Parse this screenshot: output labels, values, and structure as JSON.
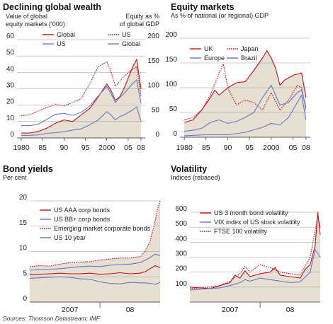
{
  "source": "Sources: Thomson Datastream; IMF",
  "colors": {
    "red": "#c0141c",
    "blue": "#6677cc",
    "fill": "#e6dfd2",
    "grid": "#999999",
    "title": "#111111"
  },
  "chart_data": [
    {
      "id": "wealth",
      "type": "line",
      "title": "Declining global wealth",
      "ylabel_left": "Value of global equity markets ('000)",
      "ylabel_right": "Equity as % of global GDP",
      "ylim_left": [
        0,
        60
      ],
      "ylim_right": [
        0,
        200
      ],
      "yticks_left": [
        0,
        10,
        20,
        30,
        40,
        50,
        60
      ],
      "yticks_right": [
        0,
        50,
        100,
        150,
        200
      ],
      "xlim": [
        1979,
        2009
      ],
      "xticks": [
        1980,
        1985,
        1990,
        1995,
        2000,
        2005,
        2008
      ],
      "xtick_labels": [
        "1980",
        "85",
        "90",
        "95",
        "2000",
        "05",
        "08"
      ],
      "legend": [
        {
          "label": "Global",
          "style": "solid",
          "color": "red",
          "group": "left"
        },
        {
          "label": "US",
          "style": "solid",
          "color": "blue",
          "group": "left"
        },
        {
          "label": "US",
          "style": "dotted",
          "color": "red",
          "group": "right"
        },
        {
          "label": "Global",
          "style": "solid",
          "color": "blue",
          "group": "right"
        }
      ],
      "series": [
        {
          "name": "Global",
          "axis": "left",
          "style": "solid",
          "color": "red",
          "fill": true,
          "x": [
            1980,
            1982,
            1984,
            1986,
            1988,
            1990,
            1992,
            1994,
            1996,
            1998,
            2000,
            2001,
            2002,
            2003,
            2004,
            2006,
            2007,
            2008
          ],
          "y": [
            3,
            3,
            4,
            6,
            9,
            11,
            10,
            14,
            18,
            25,
            33,
            29,
            23,
            25,
            30,
            43,
            48,
            30
          ]
        },
        {
          "name": "US",
          "axis": "left",
          "style": "solid",
          "color": "blue",
          "x": [
            1980,
            1982,
            1984,
            1986,
            1988,
            1990,
            1992,
            1994,
            1996,
            1998,
            2000,
            2001,
            2002,
            2003,
            2004,
            2006,
            2007,
            2008
          ],
          "y": [
            1.5,
            1.6,
            1.9,
            2.8,
            3.2,
            3.8,
            4.8,
            5.5,
            8,
            11,
            16,
            14,
            11,
            13,
            14,
            17,
            19,
            10
          ]
        },
        {
          "name": "US",
          "axis": "right",
          "style": "dotted",
          "color": "red",
          "x": [
            1980,
            1982,
            1984,
            1986,
            1988,
            1990,
            1992,
            1994,
            1996,
            1998,
            2000,
            2001,
            2002,
            2003,
            2004,
            2006,
            2007,
            2008
          ],
          "y": [
            45,
            47,
            55,
            62,
            68,
            65,
            72,
            80,
            110,
            145,
            155,
            135,
            105,
            115,
            125,
            140,
            145,
            85
          ]
        },
        {
          "name": "Global",
          "axis": "right",
          "style": "solid",
          "color": "blue",
          "x": [
            1980,
            1982,
            1984,
            1986,
            1988,
            1990,
            1992,
            1994,
            1996,
            1998,
            2000,
            2001,
            2002,
            2003,
            2004,
            2006,
            2007,
            2008
          ],
          "y": [
            25,
            25,
            28,
            38,
            48,
            50,
            46,
            52,
            65,
            85,
            105,
            90,
            72,
            82,
            90,
            110,
            118,
            70
          ]
        }
      ]
    },
    {
      "id": "equity",
      "type": "line",
      "title": "Equity markets",
      "subtitle": "As % of national (or regional) GDP",
      "ylim": [
        0,
        200
      ],
      "yticks": [
        0,
        50,
        100,
        150,
        200
      ],
      "xlim": [
        1979,
        2009
      ],
      "xticks": [
        1980,
        1985,
        1990,
        1995,
        2000,
        2005,
        2008
      ],
      "xtick_labels": [
        "1980",
        "85",
        "90",
        "95",
        "2000",
        "05",
        "08"
      ],
      "legend": [
        {
          "label": "UK",
          "style": "solid",
          "color": "red"
        },
        {
          "label": "Japan",
          "style": "dotted",
          "color": "red"
        },
        {
          "label": "Europe",
          "style": "solid",
          "color": "blue"
        },
        {
          "label": "Brazil",
          "style": "solid",
          "color": "blue"
        }
      ],
      "series": [
        {
          "name": "UK",
          "style": "solid",
          "color": "red",
          "fill": true,
          "x": [
            1980,
            1982,
            1984,
            1986,
            1987,
            1988,
            1990,
            1992,
            1994,
            1996,
            1998,
            1999,
            2000,
            2001,
            2002,
            2003,
            2005,
            2007,
            2008
          ],
          "y": [
            30,
            35,
            55,
            80,
            95,
            85,
            100,
            110,
            112,
            135,
            160,
            175,
            160,
            140,
            105,
            115,
            125,
            130,
            80
          ]
        },
        {
          "name": "Japan",
          "style": "dotted",
          "color": "red",
          "x": [
            1980,
            1982,
            1984,
            1986,
            1988,
            1989,
            1990,
            1992,
            1994,
            1996,
            1998,
            2000,
            2002,
            2004,
            2006,
            2007,
            2008
          ],
          "y": [
            35,
            40,
            55,
            85,
            130,
            148,
            100,
            65,
            75,
            70,
            55,
            90,
            55,
            75,
            105,
            100,
            55
          ]
        },
        {
          "name": "Europe",
          "style": "solid",
          "color": "blue",
          "x": [
            1980,
            1982,
            1984,
            1986,
            1988,
            1990,
            1992,
            1994,
            1996,
            1998,
            2000,
            2002,
            2004,
            2006,
            2007,
            2008
          ],
          "y": [
            12,
            14,
            18,
            30,
            35,
            28,
            32,
            40,
            50,
            80,
            105,
            65,
            70,
            90,
            95,
            60
          ]
        },
        {
          "name": "Brazil",
          "style": "solid",
          "color": "blue",
          "x": [
            1980,
            1985,
            1990,
            1994,
            1996,
            1998,
            2000,
            2002,
            2004,
            2006,
            2007,
            2008
          ],
          "y": [
            3,
            5,
            5,
            10,
            15,
            20,
            28,
            25,
            40,
            70,
            85,
            35
          ]
        }
      ]
    },
    {
      "id": "bonds",
      "type": "line",
      "title": "Bond yields",
      "subtitle": "Per cent",
      "ylim": [
        0,
        20
      ],
      "yticks": [
        0,
        5,
        10,
        15,
        20
      ],
      "xlim": [
        0,
        26
      ],
      "xticks": [],
      "xtick_labels": [
        {
          "label": "2007",
          "at": 8
        },
        {
          "label": "08",
          "at": 20
        }
      ],
      "year_divider": 14,
      "legend": [
        {
          "label": "US AAA corp bonds",
          "style": "solid",
          "color": "red"
        },
        {
          "label": "US BB+ corp bonds",
          "style": "solid",
          "color": "blue"
        },
        {
          "label": "Emerging market corporate bonds",
          "style": "dotted",
          "color": "red"
        },
        {
          "label": "US 10 year",
          "style": "solid",
          "color": "blue"
        }
      ],
      "series": [
        {
          "name": "US AAA corp bonds",
          "style": "solid",
          "color": "red",
          "x": [
            0,
            2,
            4,
            6,
            8,
            10,
            12,
            14,
            16,
            18,
            20,
            22,
            23,
            24,
            25,
            26
          ],
          "y": [
            5.4,
            5.5,
            5.6,
            5.7,
            5.6,
            5.6,
            5.7,
            5.5,
            5.6,
            5.8,
            5.6,
            5.7,
            6.0,
            6.6,
            7.2,
            6.8
          ]
        },
        {
          "name": "US BB+ corp bonds",
          "style": "solid",
          "color": "blue",
          "x": [
            0,
            2,
            4,
            6,
            8,
            10,
            12,
            14,
            16,
            18,
            20,
            22,
            23,
            24,
            25,
            26
          ],
          "y": [
            6.3,
            6.4,
            6.5,
            6.6,
            6.8,
            7.0,
            7.1,
            7.0,
            7.3,
            7.4,
            7.5,
            7.8,
            8.3,
            8.8,
            9.5,
            9.2
          ]
        },
        {
          "name": "Emerging market corporate bonds",
          "style": "dotted",
          "color": "red",
          "fill": true,
          "x": [
            0,
            2,
            4,
            6,
            8,
            10,
            12,
            14,
            16,
            18,
            20,
            22,
            23,
            24,
            25,
            25.5,
            26
          ],
          "y": [
            7.0,
            7.2,
            7.1,
            7.5,
            7.8,
            7.9,
            8.0,
            8.3,
            8.5,
            8.7,
            8.7,
            9.0,
            10,
            12,
            16,
            18.5,
            20
          ]
        },
        {
          "name": "US 10 year",
          "style": "solid",
          "color": "blue",
          "x": [
            0,
            2,
            4,
            6,
            8,
            10,
            12,
            14,
            16,
            18,
            20,
            22,
            23,
            24,
            25,
            26
          ],
          "y": [
            4.7,
            4.8,
            4.9,
            5.0,
            4.9,
            4.6,
            4.5,
            4.0,
            3.7,
            3.6,
            3.9,
            3.8,
            3.8,
            3.7,
            3.5,
            3.9
          ]
        }
      ]
    },
    {
      "id": "volatility",
      "type": "line",
      "title": "Volatility",
      "subtitle": "Indices (rebased)",
      "ylim": [
        0,
        600
      ],
      "yticks": [
        100,
        200,
        300,
        400,
        500,
        600
      ],
      "xlim": [
        0,
        26
      ],
      "xticks": [],
      "xtick_labels": [
        {
          "label": "2007",
          "at": 8
        },
        {
          "label": "08",
          "at": 20
        }
      ],
      "year_divider": 14,
      "legend": [
        {
          "label": "US 3 month bond volatility",
          "style": "solid",
          "color": "red"
        },
        {
          "label": "VIX index of US stock volatility",
          "style": "solid",
          "color": "blue"
        },
        {
          "label": "FTSE 100 volatility",
          "style": "dotted",
          "color": "red"
        }
      ],
      "series": [
        {
          "name": "US 3 month bond volatility",
          "style": "solid",
          "color": "red",
          "fill": true,
          "x": [
            0,
            2,
            4,
            6,
            8,
            9,
            10,
            11,
            12,
            14,
            16,
            17,
            18,
            20,
            22,
            23,
            24,
            25,
            25.5,
            26
          ],
          "y": [
            100,
            95,
            90,
            110,
            130,
            180,
            160,
            210,
            170,
            190,
            200,
            230,
            180,
            170,
            160,
            220,
            250,
            380,
            600,
            450
          ]
        },
        {
          "name": "VIX index of US stock volatility",
          "style": "solid",
          "color": "blue",
          "x": [
            0,
            2,
            4,
            6,
            8,
            10,
            11,
            12,
            14,
            16,
            18,
            20,
            22,
            24,
            25,
            26
          ],
          "y": [
            80,
            85,
            90,
            95,
            110,
            130,
            150,
            140,
            160,
            150,
            140,
            130,
            135,
            200,
            350,
            300
          ]
        },
        {
          "name": "FTSE 100 volatility",
          "style": "dotted",
          "color": "red",
          "x": [
            0,
            2,
            4,
            6,
            8,
            10,
            11,
            12,
            14,
            16,
            18,
            20,
            22,
            24,
            25,
            25.5,
            26
          ],
          "y": [
            90,
            95,
            100,
            110,
            140,
            190,
            240,
            200,
            250,
            230,
            200,
            190,
            180,
            300,
            480,
            580,
            500
          ]
        }
      ]
    }
  ]
}
